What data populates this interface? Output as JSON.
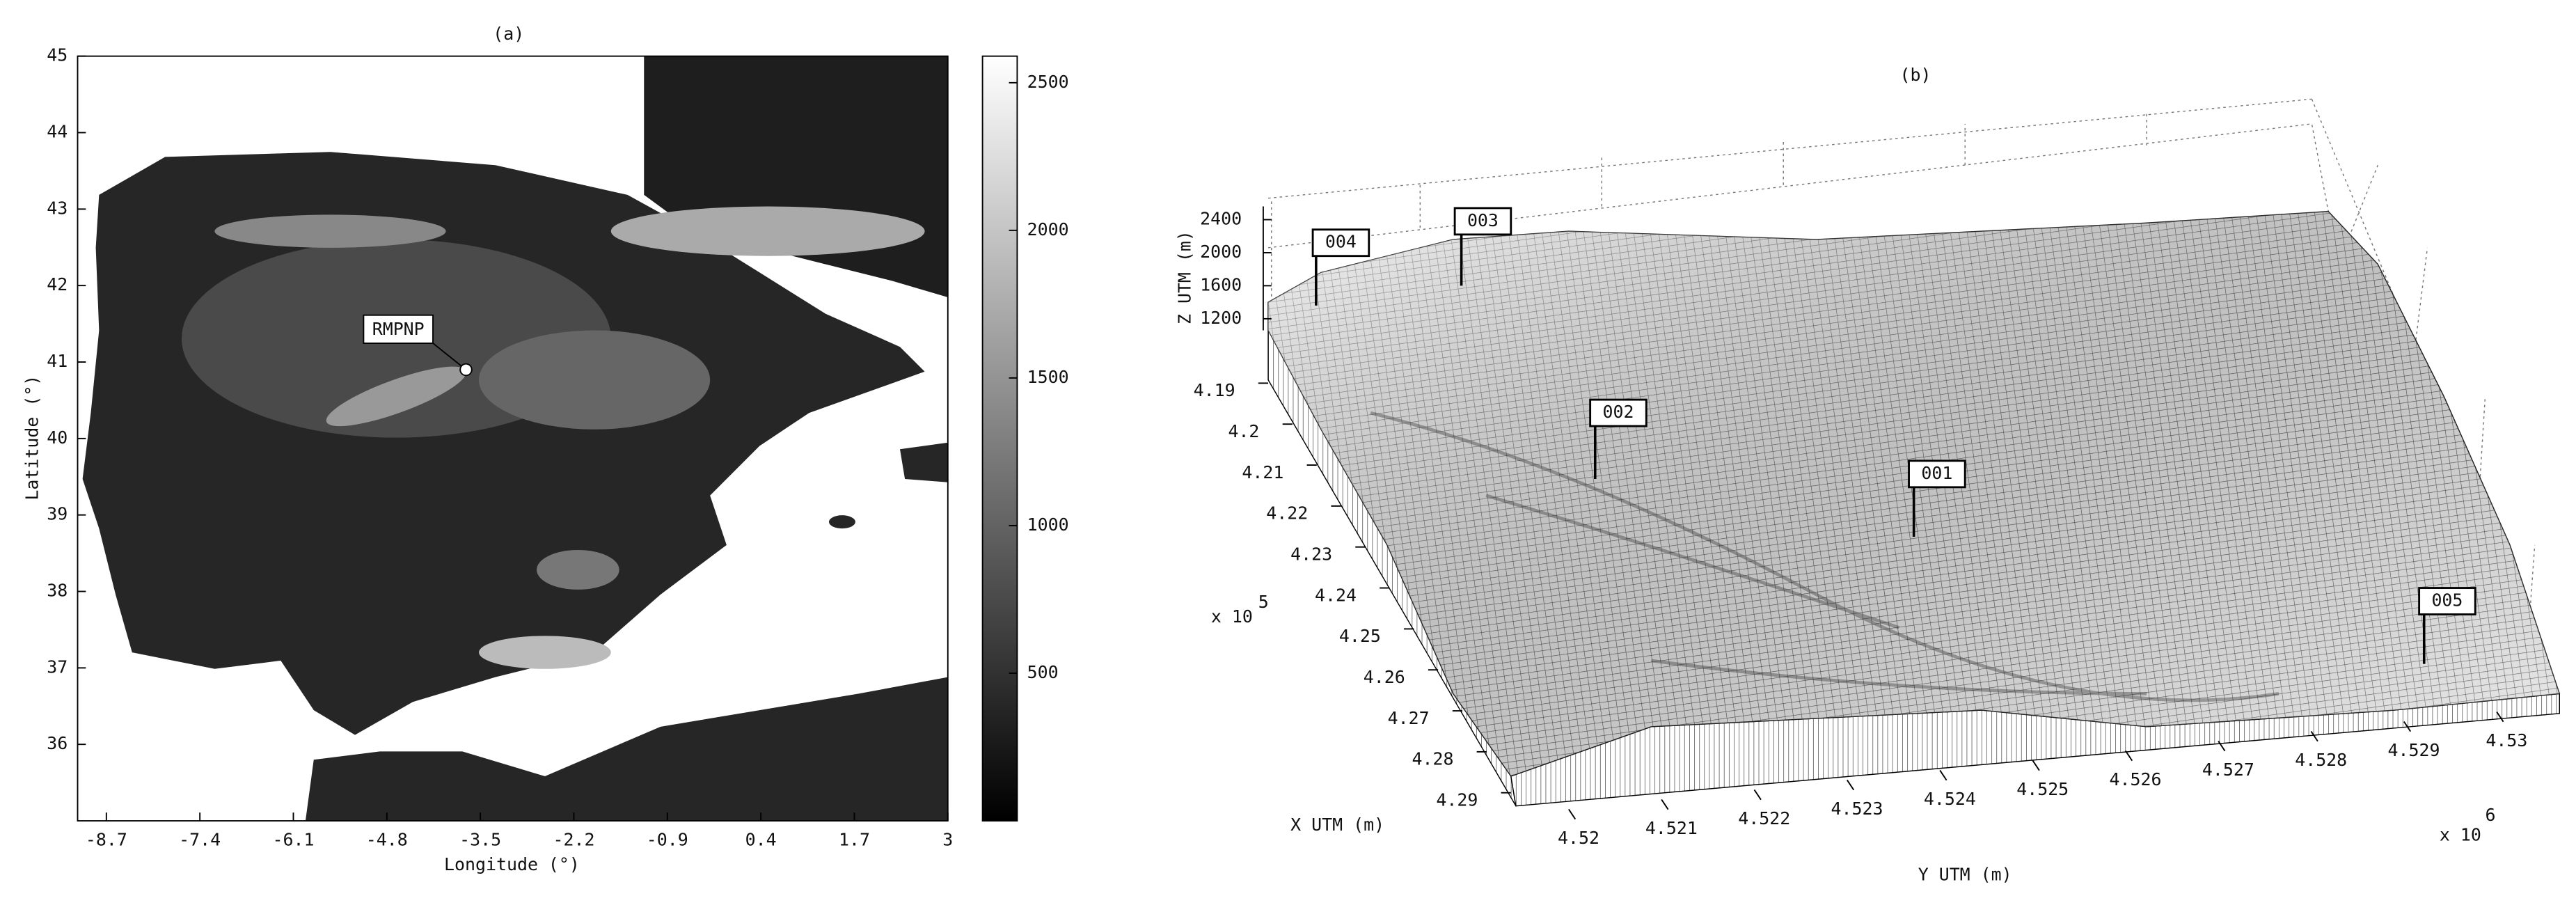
{
  "chart_data": [
    {
      "type": "map",
      "title": "(a)",
      "xlabel": "Longitude (°)",
      "ylabel": "Latitude (°)",
      "xlim": [
        -9.1,
        3
      ],
      "xticks": [
        -8.7,
        -7.4,
        -6.1,
        -4.8,
        -3.5,
        -2.2,
        -0.9,
        0.4,
        1.7,
        3
      ],
      "ylim": [
        35,
        45
      ],
      "yticks": [
        36,
        37,
        38,
        39,
        40,
        41,
        42,
        43,
        44,
        45
      ],
      "colorbar": {
        "lim": [
          0,
          2590
        ],
        "ticks": [
          500,
          1000,
          1500,
          2000,
          2500
        ]
      },
      "annotations": [
        {
          "text": "RMPNP",
          "lon": -3.7,
          "lat": 40.9
        }
      ]
    },
    {
      "type": "surface3d",
      "title": "(b)",
      "xlabel": "X UTM (m)",
      "ylabel": "Y UTM (m)",
      "zlabel": "Z UTM (m)",
      "xticks": [
        4.19,
        4.2,
        4.21,
        4.22,
        4.23,
        4.24,
        4.25,
        4.26,
        4.27,
        4.28,
        4.29
      ],
      "x_multiplier": {
        "base": "x 10",
        "exponent": "5"
      },
      "yticks": [
        4.52,
        4.521,
        4.522,
        4.523,
        4.524,
        4.525,
        4.526,
        4.527,
        4.528,
        4.529,
        4.53
      ],
      "y_multiplier": {
        "base": "x 10",
        "exponent": "6"
      },
      "zticks": [
        1200,
        1600,
        2000,
        2400
      ],
      "flags": [
        "004",
        "003",
        "002",
        "001",
        "005"
      ]
    }
  ]
}
